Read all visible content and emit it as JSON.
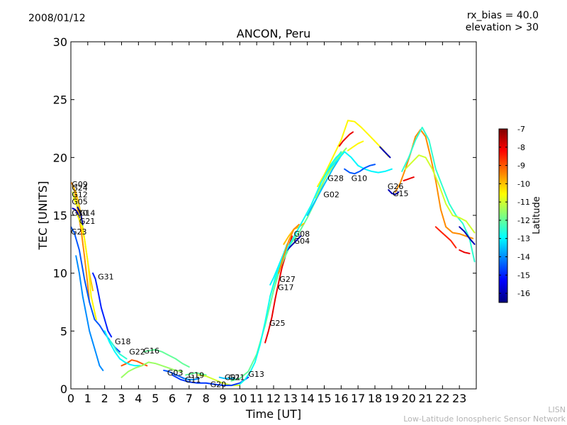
{
  "header": {
    "date": "2008/01/12",
    "rx_bias": "rx_bias = 40.0",
    "elevation": "elevation > 30"
  },
  "footer": {
    "credit_line1": "LISN",
    "credit_line2": "Low-Latitude Ionospheric Sensor Network"
  },
  "chart_data": {
    "type": "line",
    "title": "ANCON, Peru",
    "xlabel": "Time [UT]",
    "ylabel": "TEC [UNITS]",
    "xlim": [
      0,
      24
    ],
    "ylim": [
      0,
      30
    ],
    "xticks": [
      "0",
      "1",
      "2",
      "3",
      "4",
      "5",
      "6",
      "7",
      "8",
      "9",
      "10",
      "11",
      "12",
      "13",
      "14",
      "15",
      "16",
      "17",
      "18",
      "19",
      "20",
      "21",
      "22",
      "23"
    ],
    "yticks": [
      "0",
      "5",
      "10",
      "15",
      "20",
      "25",
      "30"
    ],
    "grid": false,
    "colorbar": {
      "label": "Latitude",
      "range": [
        -16.5,
        -7
      ],
      "ticks": [
        "-7",
        "-8",
        "-9",
        "-10",
        "-11",
        "-12",
        "-13",
        "-14",
        "-15",
        "-16"
      ],
      "colormap": "jet",
      "stops": [
        "#00007f",
        "#0000ff",
        "#007fff",
        "#00ffff",
        "#7fff7f",
        "#ffff00",
        "#ff7f00",
        "#ff0000",
        "#7f0000"
      ]
    },
    "series": [
      {
        "name": "G09",
        "lat": -9.5,
        "x": [
          0.05,
          0.2,
          0.4,
          0.6,
          0.8,
          1.0,
          1.1
        ],
        "y": [
          17.8,
          17.3,
          15.5,
          13.8,
          11.5,
          9.0,
          7.5
        ]
      },
      {
        "name": "G24",
        "lat": -10.0,
        "x": [
          0.1,
          0.3,
          0.5,
          0.7,
          0.9,
          1.1,
          1.3
        ],
        "y": [
          17.5,
          17.0,
          15.8,
          14.0,
          12.0,
          10.0,
          8.5
        ]
      },
      {
        "name": "G12",
        "lat": -11.0,
        "x": [
          0.1,
          0.25,
          0.4,
          0.55,
          0.7
        ],
        "y": [
          17.0,
          16.4,
          15.8,
          15.2,
          14.0
        ]
      },
      {
        "name": "G05",
        "lat": -10.5,
        "x": [
          0.15,
          0.3,
          0.45,
          0.6
        ],
        "y": [
          16.5,
          16.0,
          15.5,
          14.8
        ]
      },
      {
        "name": "G30",
        "lat": -16.0,
        "x": [
          0.1,
          0.25,
          0.4,
          0.5
        ],
        "y": [
          15.6,
          15.5,
          15.2,
          14.8
        ]
      },
      {
        "name": "G14",
        "lat": -16.2,
        "x": [
          0.4,
          0.5,
          0.6,
          0.7
        ],
        "y": [
          15.7,
          15.4,
          15.0,
          14.2
        ]
      },
      {
        "name": "G21",
        "lat": -10.5,
        "x": [
          0.4,
          0.6,
          0.8,
          1.0,
          1.2,
          1.5
        ],
        "y": [
          15.0,
          14.2,
          13.0,
          11.0,
          8.0,
          6.0
        ]
      },
      {
        "name": "G23",
        "lat": -14.5,
        "x": [
          0.0,
          0.2,
          0.5,
          0.8,
          1.1,
          1.4,
          1.7,
          2.0,
          2.3,
          2.6,
          2.9
        ],
        "y": [
          14.0,
          13.5,
          12.0,
          9.5,
          7.5,
          6.0,
          5.5,
          4.8,
          4.2,
          3.6,
          3.2
        ]
      },
      {
        "name": "G31",
        "lat": -15.0,
        "x": [
          1.3,
          1.45,
          1.6,
          1.8,
          2.0,
          2.2,
          2.4
        ],
        "y": [
          10.0,
          9.5,
          8.5,
          7.0,
          6.0,
          5.0,
          4.5
        ]
      },
      {
        "name": "G18",
        "lat": -12.5,
        "x": [
          2.3,
          2.5,
          2.7,
          2.9,
          3.1,
          3.3
        ],
        "y": [
          4.2,
          3.8,
          3.3,
          3.0,
          2.8,
          2.6
        ]
      },
      {
        "name": "G22",
        "lat": -9.0,
        "x": [
          3.0,
          3.3,
          3.6,
          3.9,
          4.2,
          4.5
        ],
        "y": [
          2.0,
          2.2,
          2.5,
          2.4,
          2.2,
          2.0
        ]
      },
      {
        "name": "G16",
        "lat": -12.0,
        "x": [
          4.3,
          4.6,
          5.0,
          5.4,
          5.8,
          6.2,
          6.6,
          7.0
        ],
        "y": [
          3.2,
          3.3,
          3.4,
          3.2,
          2.9,
          2.6,
          2.2,
          1.9
        ]
      },
      {
        "name": "G03",
        "lat": -14.5,
        "x": [
          5.5,
          5.8,
          6.1,
          6.4,
          6.7,
          7.0
        ],
        "y": [
          1.6,
          1.5,
          1.3,
          1.1,
          0.9,
          0.8
        ]
      },
      {
        "name": "G19",
        "lat": -12.0,
        "x": [
          6.8,
          7.1,
          7.4,
          7.7,
          8.0
        ],
        "y": [
          1.2,
          1.3,
          1.4,
          1.3,
          1.2
        ]
      },
      {
        "name": "G11",
        "lat": -14.0,
        "x": [
          6.7,
          7.0,
          7.3,
          7.6
        ],
        "y": [
          0.9,
          0.8,
          0.8,
          0.9
        ]
      },
      {
        "name": "G20",
        "lat": -11.0,
        "x": [
          7.5,
          8.0,
          8.5,
          9.0,
          9.5,
          10.0
        ],
        "y": [
          1.2,
          1.1,
          0.8,
          0.5,
          0.3,
          0.3
        ]
      },
      {
        "name": "G01",
        "lat": -13.5,
        "x": [
          8.8,
          9.1,
          9.4,
          9.7
        ],
        "y": [
          1.0,
          0.9,
          0.9,
          0.9
        ]
      },
      {
        "name": "G13",
        "lat": -12.0,
        "x": [
          9.5,
          10.0,
          10.5,
          11.0,
          11.5,
          12.0,
          12.5,
          13.0,
          13.5,
          14.0,
          14.5,
          15.0,
          15.5,
          16.0
        ],
        "y": [
          0.7,
          0.9,
          1.5,
          3.0,
          5.5,
          8.5,
          11.0,
          12.5,
          13.5,
          14.8,
          16.3,
          18.0,
          19.5,
          20.5
        ]
      },
      {
        "name": "G25",
        "lat": -8.0,
        "x": [
          11.5,
          11.7,
          11.9,
          12.1,
          12.3,
          12.5,
          12.7,
          12.9,
          13.1
        ],
        "y": [
          4.0,
          5.0,
          6.2,
          7.8,
          9.2,
          10.5,
          11.5,
          12.3,
          13.2
        ]
      },
      {
        "name": "G17",
        "lat": -12.0,
        "x": [
          11.8,
          12.0,
          12.2,
          12.4,
          12.6,
          12.8,
          13.0,
          13.2
        ],
        "y": [
          8.0,
          9.0,
          9.8,
          10.5,
          11.2,
          11.8,
          12.5,
          13.0
        ]
      },
      {
        "name": "G27",
        "lat": -13.0,
        "x": [
          11.8,
          12.0,
          12.2,
          12.4,
          12.6,
          12.8
        ],
        "y": [
          9.0,
          9.6,
          10.3,
          11.0,
          11.7,
          12.5
        ]
      },
      {
        "name": "G04",
        "lat": -16.0,
        "x": [
          12.8,
          13.0,
          13.2,
          13.4,
          13.6
        ],
        "y": [
          12.0,
          12.3,
          12.6,
          12.9,
          13.2
        ]
      },
      {
        "name": "G08",
        "lat": -10.0,
        "x": [
          12.6,
          12.9,
          13.2,
          13.5,
          13.8
        ],
        "y": [
          12.5,
          13.2,
          13.8,
          14.0,
          14.3
        ]
      },
      {
        "name": "G02",
        "lat": -13.5,
        "x": [
          14.0,
          14.3,
          14.6,
          14.9,
          15.2,
          15.5,
          15.8,
          16.1
        ],
        "y": [
          15.0,
          15.8,
          16.6,
          17.4,
          18.2,
          19.0,
          19.7,
          20.4
        ]
      },
      {
        "name": "G28",
        "lat": -11.5,
        "x": [
          14.5,
          14.8,
          15.1,
          15.4,
          15.7,
          16.0,
          16.3
        ],
        "y": [
          16.5,
          17.5,
          18.3,
          19.0,
          19.7,
          20.3,
          20.8
        ]
      },
      {
        "name": "G10",
        "lat": -13.0,
        "x": [
          15.0,
          15.4,
          15.8,
          16.2,
          16.6,
          17.0,
          17.4,
          17.8,
          18.2,
          18.6,
          19.0
        ],
        "y": [
          18.5,
          19.2,
          19.8,
          20.5,
          20.0,
          19.3,
          19.0,
          18.8,
          18.7,
          18.8,
          19.0
        ]
      },
      {
        "name": "G26",
        "lat": -10.5,
        "x": [
          14.6,
          15.0,
          15.5,
          16.0,
          16.4,
          16.8,
          17.2,
          17.6,
          18.0,
          18.4,
          18.8
        ],
        "y": [
          17.5,
          18.5,
          20.0,
          21.5,
          23.2,
          23.1,
          22.6,
          22.0,
          21.4,
          20.8,
          20.1
        ]
      },
      {
        "name": "G15",
        "lat": -16.0,
        "x": [
          18.8,
          19.0,
          19.2,
          19.4
        ],
        "y": [
          17.2,
          16.9,
          16.8,
          17.0
        ]
      },
      {
        "name": "",
        "lat": -9.5,
        "x": [
          19.2,
          19.5,
          19.8,
          20.1,
          20.4,
          20.7,
          21.0,
          21.3,
          21.6,
          21.9,
          22.2,
          22.6,
          23.0,
          23.4,
          23.8
        ],
        "y": [
          17.0,
          17.8,
          19.0,
          20.3,
          21.8,
          22.4,
          21.8,
          20.0,
          18.0,
          15.5,
          14.0,
          13.5,
          13.4,
          13.2,
          13.0
        ]
      },
      {
        "name": "",
        "lat": -12.5,
        "x": [
          19.6,
          20.0,
          20.4,
          20.8,
          21.2,
          21.6,
          22.0,
          22.4,
          22.8,
          23.2,
          23.6,
          23.9
        ],
        "y": [
          18.8,
          20.0,
          21.5,
          22.6,
          21.5,
          19.0,
          17.5,
          16.0,
          15.0,
          14.3,
          13.0,
          11.0
        ]
      },
      {
        "name": "",
        "lat": -11.0,
        "x": [
          19.8,
          20.2,
          20.6,
          21.0,
          21.4,
          21.8,
          22.2,
          22.6,
          23.0,
          23.4,
          23.9
        ],
        "y": [
          19.0,
          19.6,
          20.2,
          20.0,
          19.0,
          17.6,
          16.0,
          15.0,
          14.8,
          14.5,
          13.5
        ]
      },
      {
        "name": "",
        "lat": -8.5,
        "x": [
          21.6,
          21.9,
          22.2,
          22.5,
          22.8
        ],
        "y": [
          14.0,
          13.6,
          13.2,
          12.8,
          12.2
        ]
      },
      {
        "name": "",
        "lat": -8.0,
        "x": [
          19.7,
          19.9,
          20.1,
          20.3
        ],
        "y": [
          18.0,
          18.1,
          18.2,
          18.3
        ]
      },
      {
        "name": "",
        "lat": -16.0,
        "x": [
          23.0,
          23.3,
          23.6,
          23.9
        ],
        "y": [
          14.0,
          13.6,
          13.0,
          12.5
        ]
      },
      {
        "name": "",
        "lat": -8.0,
        "x": [
          23.0,
          23.3,
          23.6
        ],
        "y": [
          12.0,
          11.8,
          11.7
        ]
      },
      {
        "name": "",
        "lat": -14.0,
        "x": [
          0.3,
          0.5,
          0.7,
          0.9,
          1.1,
          1.3,
          1.5,
          1.7,
          1.9
        ],
        "y": [
          11.5,
          10.0,
          8.0,
          6.5,
          5.0,
          4.0,
          3.0,
          2.0,
          1.6
        ]
      },
      {
        "name": "",
        "lat": -13.0,
        "x": [
          2.0,
          2.3,
          2.6,
          2.9,
          3.2,
          3.5,
          3.8,
          4.1
        ],
        "y": [
          5.0,
          4.0,
          3.2,
          2.6,
          2.3,
          2.1,
          2.0,
          2.0
        ]
      },
      {
        "name": "",
        "lat": -11.5,
        "x": [
          3.0,
          3.4,
          3.8,
          4.2,
          4.6,
          5.0,
          5.4,
          5.8,
          6.2,
          6.6
        ],
        "y": [
          1.0,
          1.5,
          1.8,
          2.0,
          2.3,
          2.2,
          2.0,
          1.8,
          1.6,
          1.5
        ]
      },
      {
        "name": "",
        "lat": -14.8,
        "x": [
          6.0,
          6.5,
          7.0,
          7.5,
          8.0,
          8.5,
          9.0,
          9.5,
          10.0,
          10.5
        ],
        "y": [
          1.2,
          0.8,
          0.6,
          0.5,
          0.5,
          0.4,
          0.3,
          0.3,
          0.5,
          1.0
        ]
      },
      {
        "name": "",
        "lat": -12.8,
        "x": [
          10.0,
          10.3,
          10.6,
          10.9,
          11.2,
          11.5,
          11.8,
          12.1,
          12.4,
          12.7,
          13.0,
          13.3,
          13.6,
          13.9,
          14.2,
          14.5,
          14.8,
          15.1,
          15.4,
          15.7,
          16.0
        ],
        "y": [
          0.4,
          0.8,
          1.4,
          2.3,
          3.8,
          5.8,
          8.0,
          9.6,
          10.8,
          11.8,
          12.6,
          13.4,
          14.2,
          15.0,
          15.8,
          16.8,
          17.8,
          18.6,
          19.4,
          20.0,
          20.4
        ]
      },
      {
        "name": "",
        "lat": -9.5,
        "x": [
          12.3,
          12.6,
          12.9,
          13.2,
          13.5
        ],
        "y": [
          10.0,
          11.5,
          12.8,
          13.8,
          14.2
        ]
      },
      {
        "name": "",
        "lat": -8.0,
        "x": [
          15.9,
          16.1,
          16.3,
          16.5,
          16.7
        ],
        "y": [
          21.0,
          21.4,
          21.7,
          22.0,
          22.2
        ]
      },
      {
        "name": "",
        "lat": -10.5,
        "x": [
          16.4,
          16.7,
          17.0,
          17.3
        ],
        "y": [
          20.6,
          20.9,
          21.2,
          21.4
        ]
      },
      {
        "name": "",
        "lat": -14.5,
        "x": [
          16.2,
          16.5,
          16.8,
          17.1,
          17.4,
          17.7,
          18.0
        ],
        "y": [
          19.0,
          18.7,
          18.6,
          18.8,
          19.1,
          19.3,
          19.4
        ]
      },
      {
        "name": "",
        "lat": -16.0,
        "x": [
          18.3,
          18.5,
          18.7,
          18.9
        ],
        "y": [
          20.9,
          20.6,
          20.3,
          20.0
        ]
      }
    ],
    "labels": [
      {
        "text": "G09",
        "x": 0.05,
        "y": 17.7
      },
      {
        "text": "G24",
        "x": 0.05,
        "y": 17.4
      },
      {
        "text": "G12",
        "x": 0.05,
        "y": 16.8
      },
      {
        "text": "G05",
        "x": 0.05,
        "y": 16.2
      },
      {
        "text": "G30",
        "x": 0.05,
        "y": 15.2
      },
      {
        "text": "G14",
        "x": 0.5,
        "y": 15.2
      },
      {
        "text": "G21",
        "x": 0.5,
        "y": 14.5
      },
      {
        "text": "G23",
        "x": 0.0,
        "y": 13.6
      },
      {
        "text": "G31",
        "x": 1.6,
        "y": 9.7
      },
      {
        "text": "G18",
        "x": 2.6,
        "y": 4.1
      },
      {
        "text": "G22",
        "x": 3.45,
        "y": 3.2
      },
      {
        "text": "G16",
        "x": 4.3,
        "y": 3.3
      },
      {
        "text": "G03",
        "x": 5.7,
        "y": 1.4
      },
      {
        "text": "G19",
        "x": 6.95,
        "y": 1.2
      },
      {
        "text": "G11",
        "x": 6.75,
        "y": 0.8
      },
      {
        "text": "G20",
        "x": 8.25,
        "y": 0.4
      },
      {
        "text": "G01",
        "x": 9.1,
        "y": 1.0
      },
      {
        "text": "G21",
        "x": 9.35,
        "y": 1.0
      },
      {
        "text": "G13",
        "x": 10.5,
        "y": 1.3
      },
      {
        "text": "G25",
        "x": 11.75,
        "y": 5.7
      },
      {
        "text": "G27",
        "x": 12.35,
        "y": 9.5
      },
      {
        "text": "G17",
        "x": 12.25,
        "y": 8.8
      },
      {
        "text": "G08",
        "x": 13.2,
        "y": 13.4
      },
      {
        "text": "G04",
        "x": 13.2,
        "y": 12.8
      },
      {
        "text": "G02",
        "x": 14.95,
        "y": 16.8
      },
      {
        "text": "G28",
        "x": 15.2,
        "y": 18.2
      },
      {
        "text": "G10",
        "x": 16.6,
        "y": 18.2
      },
      {
        "text": "G26",
        "x": 18.75,
        "y": 17.5
      },
      {
        "text": "G15",
        "x": 19.05,
        "y": 16.9
      }
    ]
  }
}
